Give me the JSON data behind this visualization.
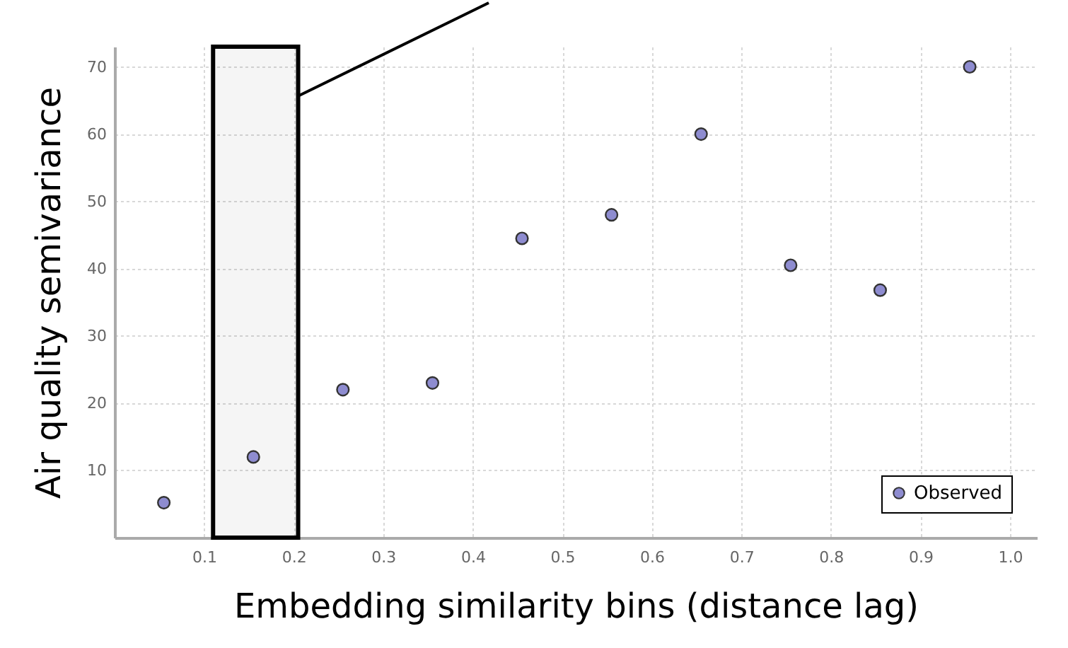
{
  "chart_data": {
    "type": "scatter",
    "xlabel": "Embedding similarity bins (distance lag)",
    "ylabel": "Air quality semivariance",
    "x": [
      0.055,
      0.155,
      0.255,
      0.355,
      0.455,
      0.555,
      0.655,
      0.755,
      0.855,
      0.955
    ],
    "series": [
      {
        "name": "Observed",
        "color": "#8e8cd0",
        "values": [
          5.2,
          12,
          22,
          23,
          44.5,
          48,
          60,
          40.5,
          36.8,
          70
        ]
      }
    ],
    "xlim": [
      0,
      1.03
    ],
    "xticks": [
      0.1,
      0.2,
      0.3,
      0.4,
      0.5,
      0.6,
      0.7,
      0.8,
      0.9,
      {
        "value": 1.0,
        "label": "1.0"
      }
    ],
    "ylim": [
      0,
      73
    ],
    "yticks": [
      10,
      20,
      30,
      40,
      50,
      60,
      70
    ],
    "bands": [
      {
        "axis": "x",
        "from": 0.11,
        "to": 0.205,
        "color": "#000000"
      }
    ],
    "grid": true,
    "legend": "bottom right",
    "marker": "circle"
  }
}
